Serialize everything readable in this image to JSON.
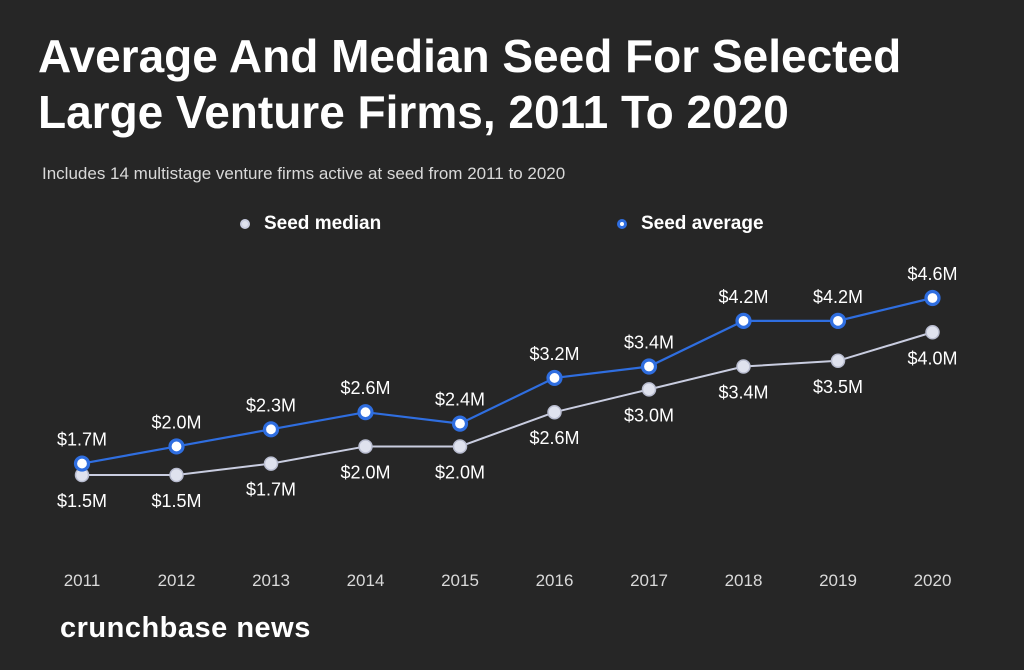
{
  "chart_data": {
    "type": "line",
    "title": "Average And Median Seed For Selected Large Venture Firms, 2011 To 2020",
    "subtitle": "Includes 14 multistage venture firms active at seed from 2011 to 2020",
    "categories": [
      "2011",
      "2012",
      "2013",
      "2014",
      "2015",
      "2016",
      "2017",
      "2018",
      "2019",
      "2020"
    ],
    "series": [
      {
        "name": "Seed median",
        "values": [
          1.5,
          1.5,
          1.7,
          2.0,
          2.0,
          2.6,
          3.0,
          3.4,
          3.5,
          4.0
        ],
        "labels": [
          "$1.5M",
          "$1.5M",
          "$1.7M",
          "$2.0M",
          "$2.0M",
          "$2.6M",
          "$3.0M",
          "$3.4M",
          "$3.5M",
          "$4.0M"
        ],
        "color": "#dfe2ee",
        "line_color": "#c9cde0"
      },
      {
        "name": "Seed average",
        "values": [
          1.7,
          2.0,
          2.3,
          2.6,
          2.4,
          3.2,
          3.4,
          4.2,
          4.2,
          4.6
        ],
        "labels": [
          "$1.7M",
          "$2.0M",
          "$2.3M",
          "$2.6M",
          "$2.4M",
          "$3.2M",
          "$3.4M",
          "$4.2M",
          "$4.2M",
          "$4.6M"
        ],
        "color": "#2f6ee0",
        "line_color": "#2f6ee0"
      }
    ],
    "xlabel": "",
    "ylabel": "",
    "grid": false,
    "legend": "top-center"
  },
  "brand": "crunchbase news",
  "colors": {
    "background": "#262626",
    "text": "#ffffff"
  }
}
